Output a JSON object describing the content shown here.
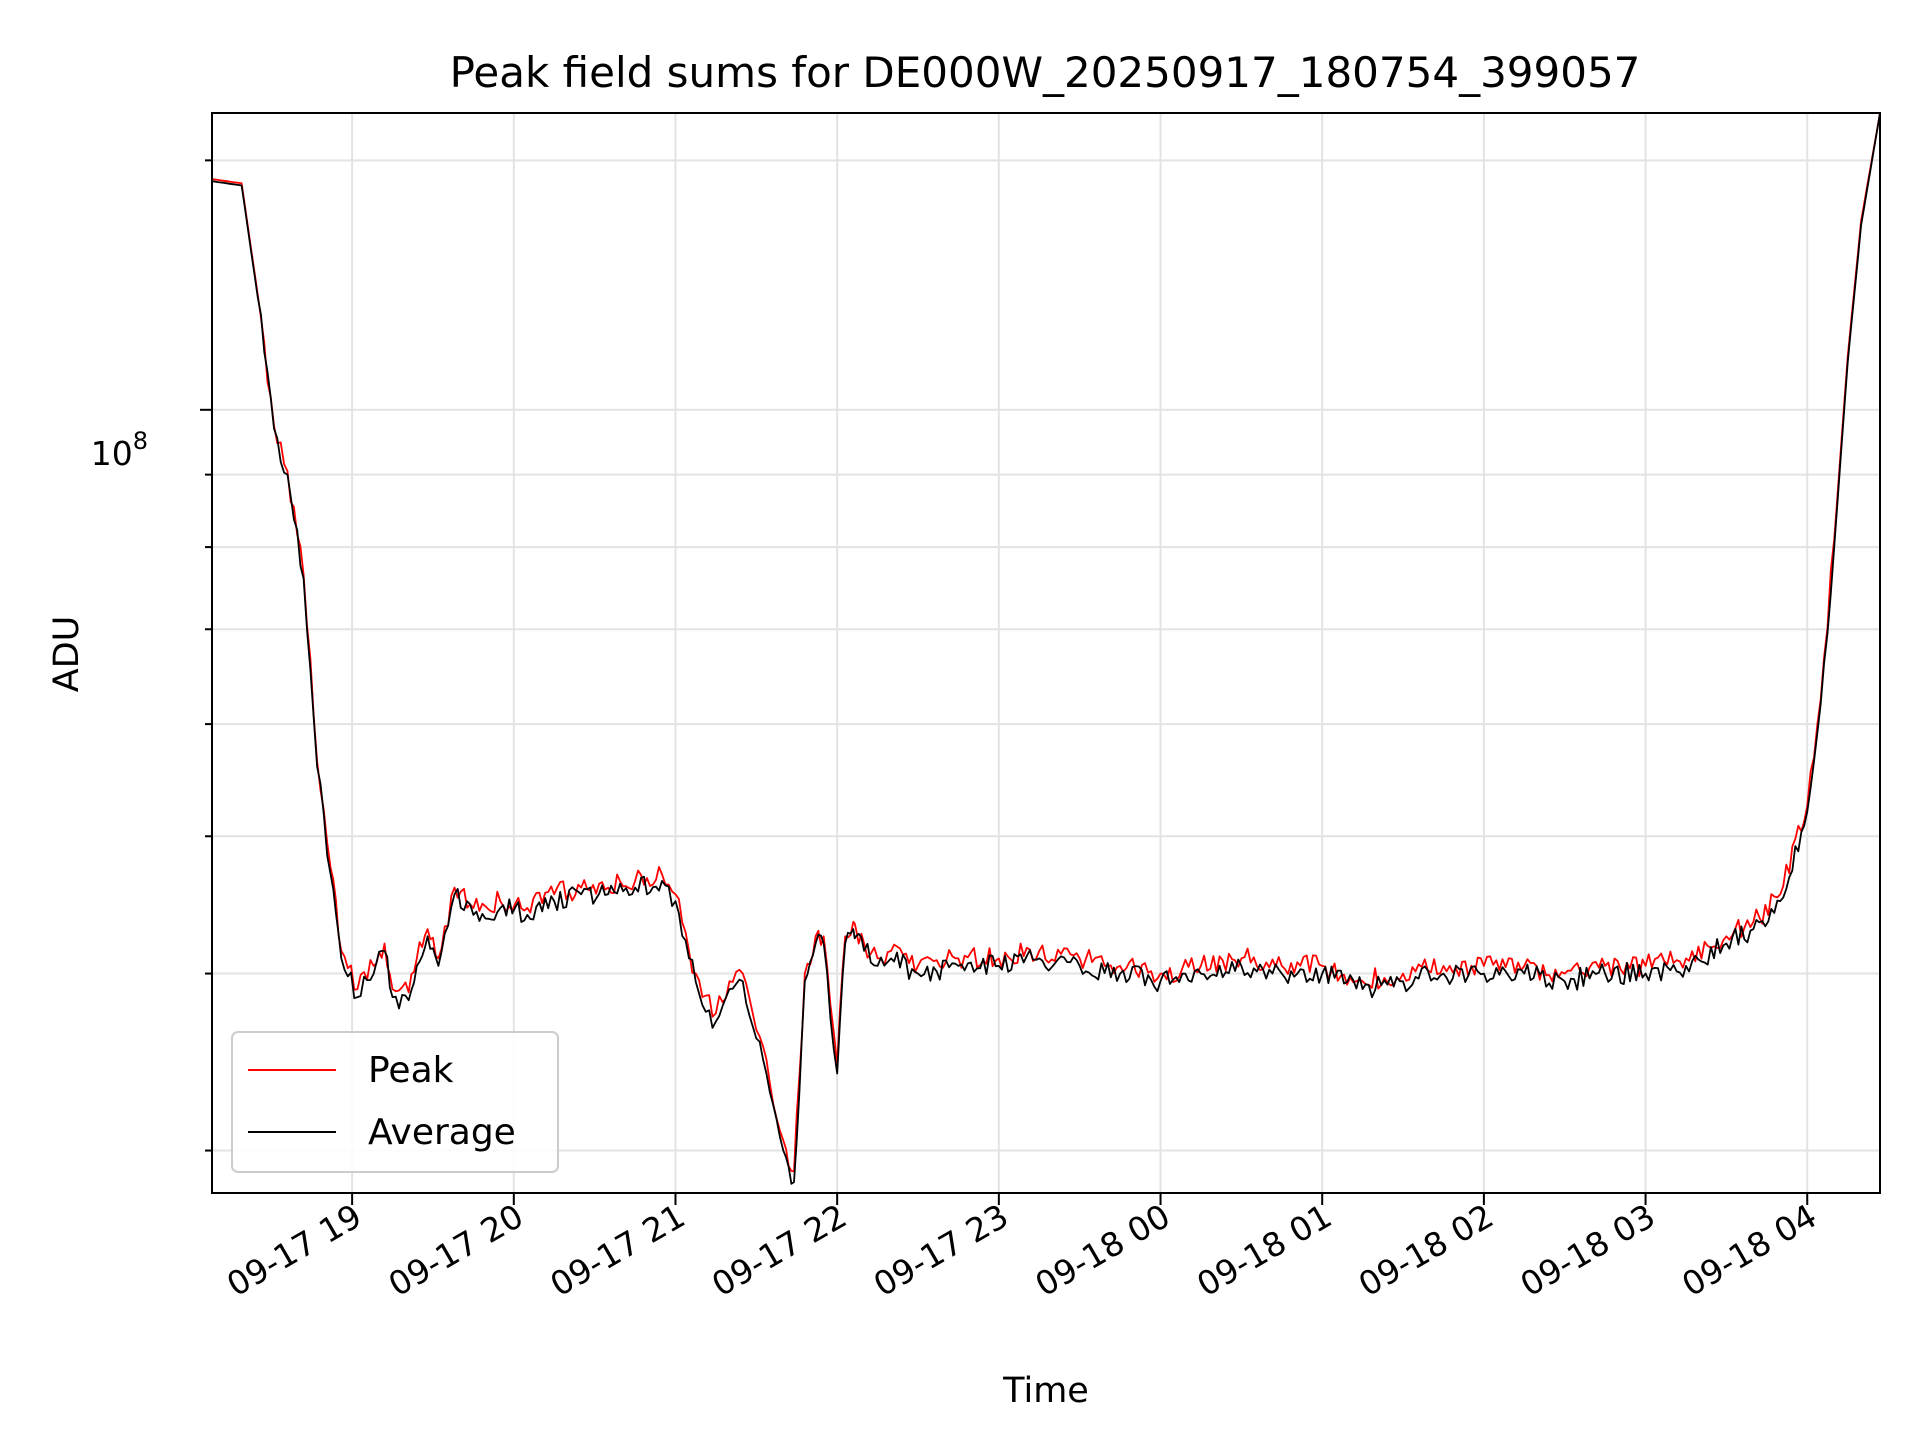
{
  "chart_data": {
    "type": "line",
    "title": "Peak field sums for DE000W_20250917_180754_399057",
    "xlabel": "Time",
    "ylabel": "ADU",
    "yscale": "log",
    "ylim": [
      28000000,
      162000000
    ],
    "xlim": [
      "2025-09-17 18:08",
      "2025-09-18 04:27"
    ],
    "x_ticks": [
      "09-17 19",
      "09-17 20",
      "09-17 21",
      "09-17 22",
      "09-17 23",
      "09-18 00",
      "09-18 01",
      "09-18 02",
      "09-18 03",
      "09-18 04"
    ],
    "x_tick_times": [
      "2025-09-17 19:00",
      "2025-09-17 20:00",
      "2025-09-17 21:00",
      "2025-09-17 22:00",
      "2025-09-17 23:00",
      "2025-09-18 00:00",
      "2025-09-18 01:00",
      "2025-09-18 02:00",
      "2025-09-18 03:00",
      "2025-09-18 04:00"
    ],
    "y_tick_label": "10",
    "y_tick_exponent": "8",
    "y_tick_value": 100000000,
    "grid": true,
    "legend_position": "lower-left",
    "series": [
      {
        "name": "Peak",
        "color": "#ff0000"
      },
      {
        "name": "Average",
        "color": "#000000"
      }
    ],
    "x": [
      "2025-09-17 18:08",
      "2025-09-17 18:19",
      "2025-09-17 18:25",
      "2025-09-17 18:31",
      "2025-09-17 18:36",
      "2025-09-17 18:42",
      "2025-09-17 18:47",
      "2025-09-17 18:52",
      "2025-09-17 18:56",
      "2025-09-17 19:02",
      "2025-09-17 19:08",
      "2025-09-17 19:12",
      "2025-09-17 19:15",
      "2025-09-17 19:21",
      "2025-09-17 19:24",
      "2025-09-17 19:28",
      "2025-09-17 19:32",
      "2025-09-17 19:38",
      "2025-09-17 19:45",
      "2025-09-17 19:55",
      "2025-09-17 20:05",
      "2025-09-17 20:15",
      "2025-09-17 20:25",
      "2025-09-17 20:35",
      "2025-09-17 20:45",
      "2025-09-17 20:55",
      "2025-09-17 21:00",
      "2025-09-17 21:05",
      "2025-09-17 21:10",
      "2025-09-17 21:15",
      "2025-09-17 21:20",
      "2025-09-17 21:25",
      "2025-09-17 21:30",
      "2025-09-17 21:35",
      "2025-09-17 21:40",
      "2025-09-17 21:44",
      "2025-09-17 21:48",
      "2025-09-17 21:52",
      "2025-09-17 21:55",
      "2025-09-17 22:00",
      "2025-09-17 22:03",
      "2025-09-17 22:06",
      "2025-09-17 22:07",
      "2025-09-17 22:10",
      "2025-09-17 22:15",
      "2025-09-17 22:20",
      "2025-09-17 22:30",
      "2025-09-17 22:45",
      "2025-09-17 23:00",
      "2025-09-17 23:15",
      "2025-09-17 23:30",
      "2025-09-17 23:45",
      "2025-09-18 00:00",
      "2025-09-18 00:15",
      "2025-09-18 00:30",
      "2025-09-18 00:45",
      "2025-09-18 01:00",
      "2025-09-18 01:15",
      "2025-09-18 01:30",
      "2025-09-18 01:45",
      "2025-09-18 02:00",
      "2025-09-18 02:15",
      "2025-09-18 02:30",
      "2025-09-18 02:45",
      "2025-09-18 03:00",
      "2025-09-18 03:15",
      "2025-09-18 03:30",
      "2025-09-18 03:40",
      "2025-09-18 03:50",
      "2025-09-18 04:00",
      "2025-09-18 04:05",
      "2025-09-18 04:10",
      "2025-09-18 04:15",
      "2025-09-18 04:20",
      "2025-09-18 04:27"
    ],
    "y_average": [
      145000000,
      144000000,
      120000000,
      97000000,
      90000000,
      76000000,
      56000000,
      47000000,
      41000000,
      38500000,
      40000000,
      41500000,
      38500000,
      38300000,
      40500000,
      42500000,
      40500000,
      45500000,
      44000000,
      44500000,
      44000000,
      45000000,
      45500000,
      45500000,
      46000000,
      46500000,
      45000000,
      41000000,
      38000000,
      37000000,
      39000000,
      39500000,
      36000000,
      33000000,
      30000000,
      28500000,
      39500000,
      42000000,
      42000000,
      34000000,
      42000000,
      43000000,
      42500000,
      41500000,
      40500000,
      41000000,
      40000000,
      40500000,
      40500000,
      41000000,
      40500000,
      40000000,
      39500000,
      40000000,
      40500000,
      40000000,
      40000000,
      39000000,
      39500000,
      40000000,
      40000000,
      40000000,
      39500000,
      40000000,
      40000000,
      40500000,
      42000000,
      43000000,
      45000000,
      52000000,
      62000000,
      80000000,
      108000000,
      135000000,
      162000000
    ],
    "y_peak": [
      145500000,
      144500000,
      120500000,
      97500000,
      90500000,
      76500000,
      56500000,
      47500000,
      41500000,
      39000000,
      40500000,
      42000000,
      39000000,
      38800000,
      41000000,
      43000000,
      41000000,
      46000000,
      44500000,
      45000000,
      44500000,
      45500000,
      46000000,
      46000000,
      46500000,
      47000000,
      45500000,
      41500000,
      38500000,
      37500000,
      39500000,
      40000000,
      36500000,
      33500000,
      30500000,
      29000000,
      40000000,
      42500000,
      42500000,
      34500000,
      42500000,
      43500000,
      43000000,
      42000000,
      41000000,
      41500000,
      40500000,
      41000000,
      41000000,
      41500000,
      41000000,
      40500000,
      40000000,
      40500000,
      41000000,
      40500000,
      40500000,
      39500000,
      40000000,
      40500000,
      40500000,
      40500000,
      40000000,
      40500000,
      40500000,
      41000000,
      42500000,
      43500000,
      45500000,
      52500000,
      62500000,
      81000000,
      109000000,
      136000000,
      162000000
    ]
  }
}
